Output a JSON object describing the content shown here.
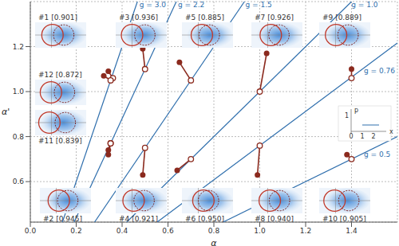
{
  "chart_data": {
    "type": "scatter",
    "x_label": "α",
    "y_label": "α'",
    "xlim": [
      0,
      1.6
    ],
    "ylim": [
      0.42,
      1.4
    ],
    "xticks": [
      {
        "value": 0,
        "label": "0.0"
      },
      0.2,
      0.4,
      0.6,
      0.8,
      {
        "value": 1,
        "label": "1.0"
      },
      1.2,
      1.4
    ],
    "yticks": [
      0.6,
      0.8,
      {
        "value": 1,
        "label": "1.0"
      },
      1.2
    ],
    "grid": true,
    "g_lines": [
      {
        "g": 3.0,
        "label": "g = 3.0",
        "color": "#2f6fad"
      },
      {
        "g": 2.2,
        "label": "g = 2.2",
        "color": "#2f6fad"
      },
      {
        "g": 1.5,
        "label": "g = 1.5",
        "color": "#2f6fad"
      },
      {
        "g": 1.0,
        "label": "g = 1.0",
        "color": "#2f6fad"
      },
      {
        "g": 0.76,
        "label": "g = 0.76",
        "color": "#2f6fad"
      },
      {
        "g": 0.5,
        "label": "g = 0.5",
        "color": "#2f6fad"
      }
    ],
    "points": [
      {
        "label": "#1 [0.901]",
        "color": "#8b2a1e",
        "predicted": {
          "x": 0.36,
          "y": 1.06
        },
        "measured": {
          "x": 0.34,
          "y": 1.09
        }
      },
      {
        "label": "#2 [0.945]",
        "color": "#8b2a1e",
        "predicted": {
          "x": 0.35,
          "y": 0.77
        },
        "measured": {
          "x": 0.34,
          "y": 0.72
        }
      },
      {
        "label": "#3 [0.936]",
        "color": "#8b2a1e",
        "predicted": {
          "x": 0.5,
          "y": 1.1
        },
        "measured": {
          "x": 0.49,
          "y": 1.19
        }
      },
      {
        "label": "#4 [0.921]",
        "color": "#8b2a1e",
        "predicted": {
          "x": 0.5,
          "y": 0.75
        },
        "measured": {
          "x": 0.49,
          "y": 0.63
        }
      },
      {
        "label": "#5 [0.885]",
        "color": "#8b2a1e",
        "predicted": {
          "x": 0.7,
          "y": 1.05
        },
        "measured": {
          "x": 0.65,
          "y": 1.13
        }
      },
      {
        "label": "#6 [0.950]",
        "color": "#8b2a1e",
        "predicted": {
          "x": 0.7,
          "y": 0.7
        },
        "measured": {
          "x": 0.64,
          "y": 0.65
        }
      },
      {
        "label": "#7 [0.926]",
        "color": "#8b2a1e",
        "predicted": {
          "x": 1.0,
          "y": 1.0
        },
        "measured": {
          "x": 1.03,
          "y": 1.17
        }
      },
      {
        "label": "#8 [0.940]",
        "color": "#8b2a1e",
        "predicted": {
          "x": 1.0,
          "y": 0.76
        },
        "measured": {
          "x": 0.99,
          "y": 0.63
        }
      },
      {
        "label": "#9 [0.889]",
        "color": "#8b2a1e",
        "predicted": {
          "x": 1.4,
          "y": 1.06
        },
        "measured": {
          "x": 1.4,
          "y": 1.1
        }
      },
      {
        "label": "#10 [0.905]",
        "color": "#8b2a1e",
        "predicted": {
          "x": 1.4,
          "y": 0.7
        },
        "measured": {
          "x": 1.38,
          "y": 0.72
        }
      },
      {
        "label": "#11 [0.839]",
        "color": "#8b2a1e",
        "predicted": {
          "x": 0.35,
          "y": 0.77
        },
        "measured": {
          "x": 0.34,
          "y": 0.74
        }
      },
      {
        "label": "#12 [0.872]",
        "color": "#8b2a1e",
        "predicted": {
          "x": 0.35,
          "y": 1.05
        },
        "measured": {
          "x": 0.32,
          "y": 1.07
        }
      }
    ],
    "key_inset": {
      "x_label": "x",
      "y_label": "p",
      "xticks": [
        0,
        1,
        2
      ],
      "yticks": [
        1
      ]
    }
  }
}
